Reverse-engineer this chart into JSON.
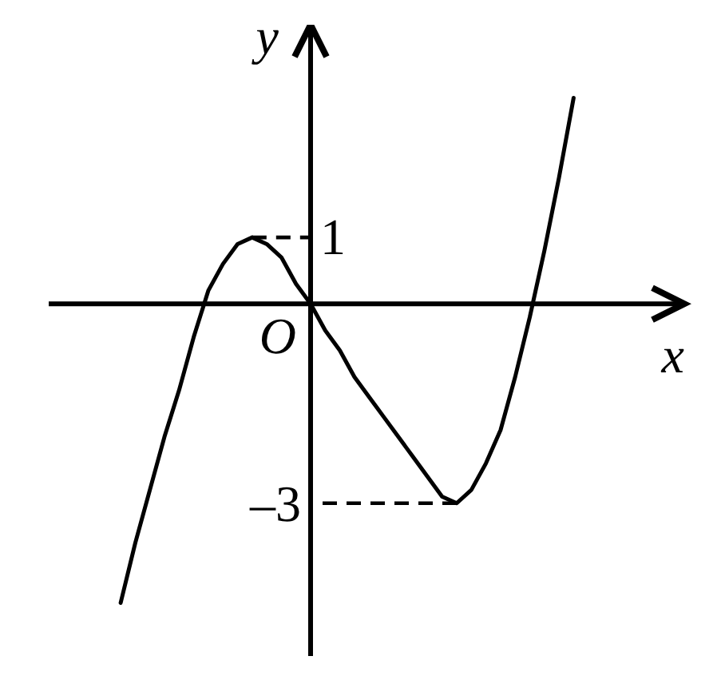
{
  "chart_data": {
    "type": "line",
    "xlabel": "x",
    "ylabel": "y",
    "categories": [
      null,
      null,
      null,
      null,
      null,
      null,
      null,
      null,
      null,
      null,
      null,
      null,
      null,
      null,
      null,
      null,
      null,
      null,
      null,
      null,
      null,
      null,
      null,
      null,
      null,
      null,
      null,
      null,
      null,
      null,
      null,
      null
    ],
    "series": [
      {
        "color": "#000000",
        "values": [
          -4.5,
          -3.6,
          -2.8,
          -2.0,
          -1.3,
          -0.5,
          0.2,
          0.6,
          0.9,
          1,
          0.9,
          0.7,
          0.3,
          0,
          -0.4,
          -0.7,
          -1.1,
          -1.4,
          -1.7,
          -2.0,
          -2.3,
          -2.6,
          -2.9,
          -3,
          -2.8,
          -2.4,
          -1.9,
          -1.1,
          -0.2,
          0.8,
          1.9,
          3.1
        ]
      }
    ],
    "ylim": [
      -5.3,
      4.2
    ],
    "ref_lines": [
      {
        "axis": "y",
        "value": 1,
        "label": "1",
        "line_style": "dashed"
      },
      {
        "axis": "y",
        "value": -3,
        "label": "–3",
        "line_style": "dashed"
      }
    ],
    "annotations": [
      "O"
    ]
  }
}
